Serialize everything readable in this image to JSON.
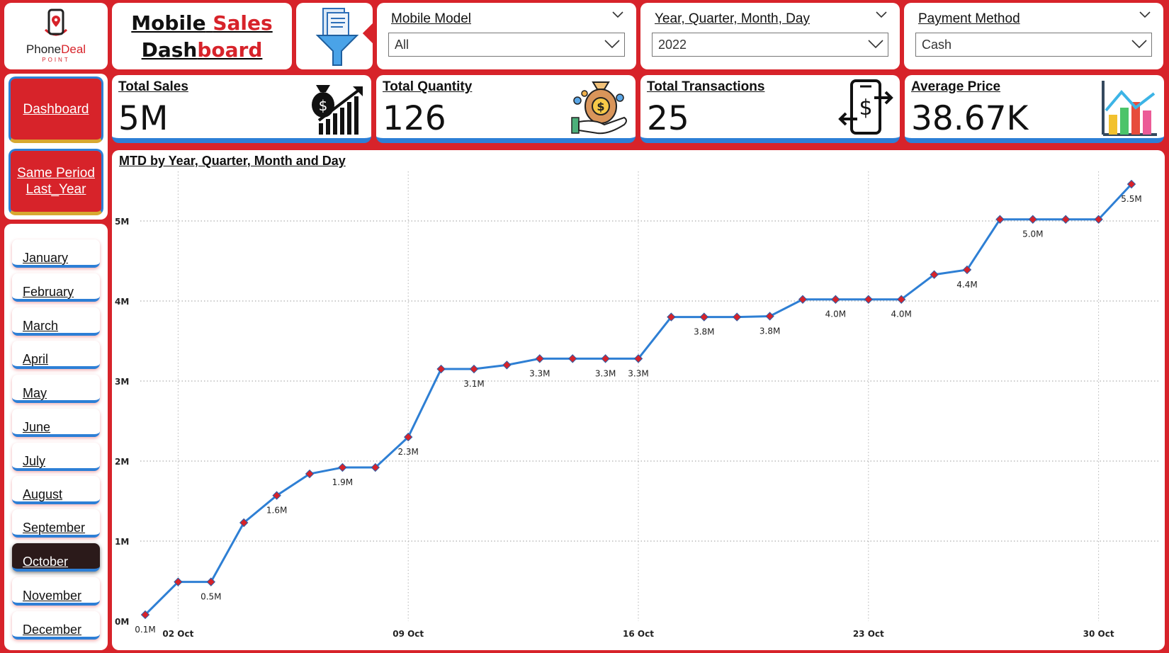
{
  "logo": {
    "brand_part1": "Phone",
    "brand_part2": "Deal",
    "subtitle": "POINT"
  },
  "title": {
    "line1_part1": "Mobile",
    "line1_part2": "Sales",
    "line2_part1": "Dash",
    "line2_part2": "board"
  },
  "colors": {
    "brand_red": "#d7232a",
    "accent_blue": "#2d7fd6",
    "line_blue": "#2e7fd4",
    "marker_red": "#d7232a"
  },
  "icons": {
    "filter": "filter-funnel-icon",
    "sales": "money-bag-growth-icon",
    "quantity": "money-bag-hand-icon",
    "transactions": "phone-transfer-icon",
    "average": "bar-chart-trend-icon"
  },
  "slicers": {
    "model": {
      "label": "Mobile Model",
      "value": "All"
    },
    "date": {
      "label": "Year, Quarter, Month, Day",
      "value": "2022"
    },
    "payment": {
      "label": "Payment Method",
      "value": "Cash"
    }
  },
  "nav": {
    "dashboard": "Dashboard",
    "same_period": "Same Period Last_Year"
  },
  "months": [
    "January",
    "February",
    "March",
    "April",
    "May",
    "June",
    "July",
    "August",
    "September",
    "October",
    "November",
    "December"
  ],
  "selected_month": "October",
  "kpis": {
    "total_sales": {
      "label": "Total Sales",
      "value": "5M"
    },
    "total_quantity": {
      "label": "Total Quantity",
      "value": "126"
    },
    "total_transactions": {
      "label": "Total Transactions",
      "value": "25"
    },
    "average_price": {
      "label": "Average Price",
      "value": "38.67K"
    }
  },
  "chart_data": {
    "type": "line",
    "title": "MTD by Year, Quarter, Month and Day",
    "xlabel": "",
    "ylabel": "",
    "x": [
      1,
      2,
      3,
      4,
      5,
      6,
      7,
      8,
      9,
      10,
      11,
      12,
      13,
      14,
      15,
      16,
      17,
      18,
      19,
      20,
      21,
      22,
      23,
      24,
      25,
      26,
      27,
      28,
      29,
      30,
      31
    ],
    "x_tick_values": [
      2,
      9,
      16,
      23,
      30
    ],
    "x_tick_labels": [
      "02 Oct",
      "09 Oct",
      "16 Oct",
      "23 Oct",
      "30 Oct"
    ],
    "xlim": [
      0,
      32
    ],
    "y_ticks": [
      0,
      1,
      2,
      3,
      4,
      5
    ],
    "y_tick_labels": [
      "0M",
      "1M",
      "2M",
      "3M",
      "4M",
      "5M"
    ],
    "ylim": [
      0,
      5.5
    ],
    "grid": true,
    "series": [
      {
        "values": [
          0.08,
          0.49,
          0.49,
          1.23,
          1.57,
          1.84,
          1.92,
          1.92,
          2.3,
          3.15,
          3.15,
          3.2,
          3.28,
          3.28,
          3.28,
          3.28,
          3.8,
          3.8,
          3.8,
          3.81,
          4.02,
          4.02,
          4.02,
          4.02,
          4.33,
          4.39,
          5.02,
          5.02,
          5.02,
          5.02,
          5.46
        ]
      }
    ],
    "data_labels": [
      {
        "index": 0,
        "text": "0.1M"
      },
      {
        "index": 2,
        "text": "0.5M"
      },
      {
        "index": 4,
        "text": "1.6M"
      },
      {
        "index": 6,
        "text": "1.9M"
      },
      {
        "index": 8,
        "text": "2.3M"
      },
      {
        "index": 10,
        "text": "3.1M"
      },
      {
        "index": 12,
        "text": "3.3M"
      },
      {
        "index": 14,
        "text": "3.3M"
      },
      {
        "index": 15,
        "text": "3.3M"
      },
      {
        "index": 17,
        "text": "3.8M"
      },
      {
        "index": 19,
        "text": "3.8M"
      },
      {
        "index": 21,
        "text": "4.0M"
      },
      {
        "index": 23,
        "text": "4.0M"
      },
      {
        "index": 25,
        "text": "4.4M"
      },
      {
        "index": 27,
        "text": "5.0M"
      },
      {
        "index": 30,
        "text": "5.5M"
      }
    ]
  }
}
